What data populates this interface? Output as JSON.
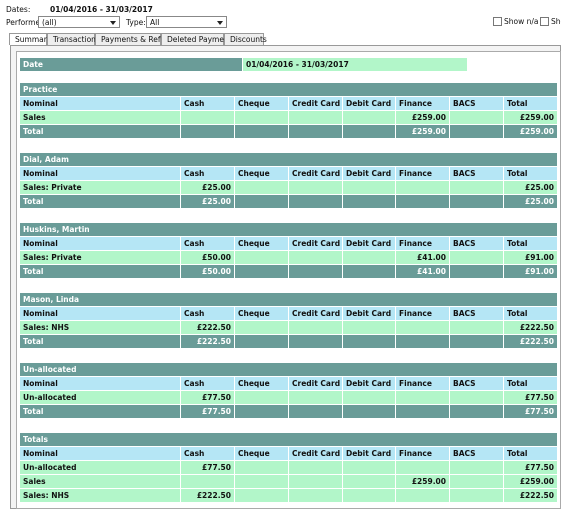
{
  "filters": {
    "dates_label": "Dates:",
    "dates_value": "01/04/2016 - 31/03/2017",
    "performer_label": "Performer:",
    "performer_value": "(all)",
    "type_label": "Type:",
    "type_value": "All",
    "checkboxes": [
      "Show n/a",
      "Sho"
    ]
  },
  "tabs": [
    "Summary",
    "Transactions",
    "Payments & Refunds",
    "Deleted Payments",
    "Discounts"
  ],
  "date_row": {
    "label": "Date",
    "value": "01/04/2016 - 31/03/2017"
  },
  "sections": [
    {
      "title": "Practice",
      "columns": [
        "Nominal",
        "Cash",
        "Cheque",
        "Credit Card",
        "Debit Card",
        "Finance",
        "BACS",
        "Total"
      ],
      "rows": [
        [
          "Sales",
          null,
          null,
          null,
          null,
          "£259.00",
          null,
          "£259.00"
        ]
      ],
      "total": [
        "Total",
        null,
        null,
        null,
        null,
        "£259.00",
        null,
        "£259.00"
      ]
    },
    {
      "title": "Dial, Adam",
      "columns": [
        "Nominal",
        "Cash",
        "Cheque",
        "Credit Card",
        "Debit Card",
        "Finance",
        "BACS",
        "Total"
      ],
      "rows": [
        [
          "Sales: Private",
          "£25.00",
          null,
          null,
          null,
          null,
          null,
          "£25.00"
        ]
      ],
      "total": [
        "Total",
        "£25.00",
        null,
        null,
        null,
        null,
        null,
        "£25.00"
      ]
    },
    {
      "title": "Huskins, Martin",
      "columns": [
        "Nominal",
        "Cash",
        "Cheque",
        "Credit Card",
        "Debit Card",
        "Finance",
        "BACS",
        "Total"
      ],
      "rows": [
        [
          "Sales: Private",
          "£50.00",
          null,
          null,
          null,
          "£41.00",
          null,
          "£91.00"
        ]
      ],
      "total": [
        "Total",
        "£50.00",
        null,
        null,
        null,
        "£41.00",
        null,
        "£91.00"
      ]
    },
    {
      "title": "Mason, Linda",
      "columns": [
        "Nominal",
        "Cash",
        "Cheque",
        "Credit Card",
        "Debit Card",
        "Finance",
        "BACS",
        "Total"
      ],
      "rows": [
        [
          "Sales: NHS",
          "£222.50",
          null,
          null,
          null,
          null,
          null,
          "£222.50"
        ]
      ],
      "total": [
        "Total",
        "£222.50",
        null,
        null,
        null,
        null,
        null,
        "£222.50"
      ]
    },
    {
      "title": "Un-allocated",
      "columns": [
        "Nominal",
        "Cash",
        "Cheque",
        "Credit Card",
        "Debit Card",
        "Finance",
        "BACS",
        "Total"
      ],
      "rows": [
        [
          "Un-allocated",
          "£77.50",
          null,
          null,
          null,
          null,
          null,
          "£77.50"
        ]
      ],
      "total": [
        "Total",
        "£77.50",
        null,
        null,
        null,
        null,
        null,
        "£77.50"
      ]
    },
    {
      "title": "Totals",
      "columns": [
        "Nominal",
        "Cash",
        "Cheque",
        "Credit Card",
        "Debit Card",
        "Finance",
        "BACS",
        "Total"
      ],
      "rows": [
        [
          "Un-allocated",
          "£77.50",
          null,
          null,
          null,
          null,
          null,
          "£77.50"
        ],
        [
          "Sales",
          null,
          null,
          null,
          null,
          "£259.00",
          null,
          "£259.00"
        ],
        [
          "Sales: NHS",
          "£222.50",
          null,
          null,
          null,
          null,
          null,
          "£222.50"
        ]
      ]
    }
  ]
}
